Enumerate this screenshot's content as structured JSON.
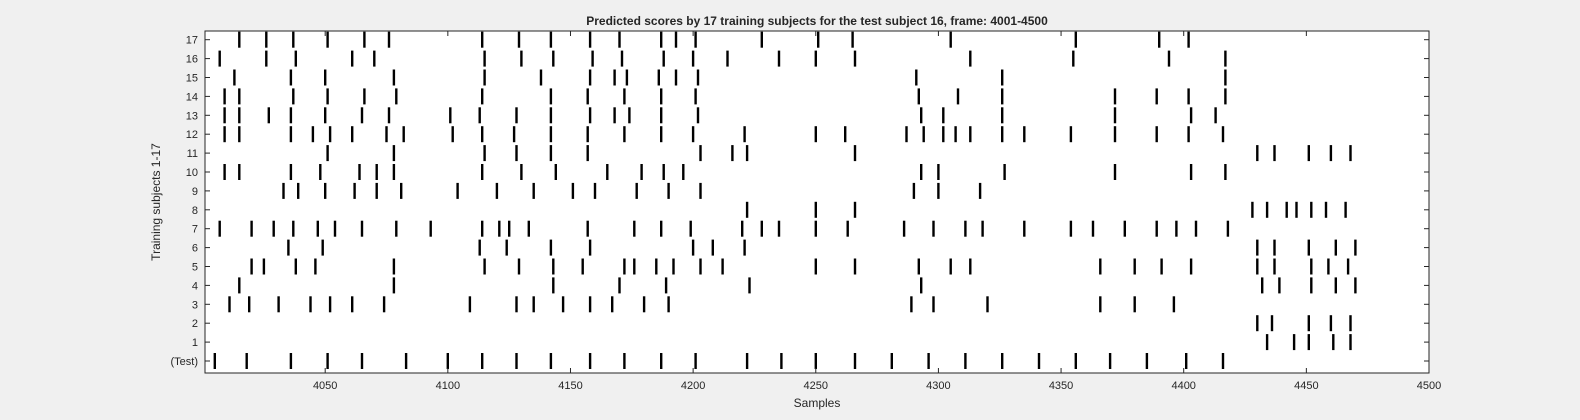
{
  "chart_data": {
    "type": "raster",
    "title": "Predicted scores by 17 training subjects for the test subject 16, frame: 4001-4500",
    "xlabel": "Samples",
    "ylabel": "Training subjects 1-17",
    "xlim": [
      4001,
      4500
    ],
    "x_ticks": [
      4050,
      4100,
      4150,
      4200,
      4250,
      4300,
      4350,
      4400,
      4450,
      4500
    ],
    "y_tick_labels": [
      "(Test)",
      "1",
      "2",
      "3",
      "4",
      "5",
      "6",
      "7",
      "8",
      "9",
      "10",
      "11",
      "12",
      "13",
      "14",
      "15",
      "16",
      "17"
    ],
    "series": [
      {
        "name": "(Test)",
        "x": [
          4005,
          4018,
          4036,
          4051,
          4065,
          4083,
          4100,
          4114,
          4128,
          4142,
          4158,
          4172,
          4187,
          4201,
          4222,
          4236,
          4250,
          4266,
          4281,
          4296,
          4311,
          4326,
          4341,
          4356,
          4370,
          4385,
          4401,
          4416
        ]
      },
      {
        "name": "1",
        "x": [
          4434,
          4445,
          4451,
          4461,
          4468
        ]
      },
      {
        "name": "2",
        "x": [
          4430,
          4436,
          4451,
          4460,
          4468
        ]
      },
      {
        "name": "3",
        "x": [
          4011,
          4019,
          4031,
          4044,
          4052,
          4061,
          4074,
          4109,
          4128,
          4135,
          4147,
          4158,
          4167,
          4180,
          4190,
          4289,
          4298,
          4320,
          4366,
          4380,
          4396
        ]
      },
      {
        "name": "4",
        "x": [
          4015,
          4078,
          4143,
          4170,
          4189,
          4223,
          4293,
          4432,
          4439,
          4452,
          4462,
          4470
        ]
      },
      {
        "name": "5",
        "x": [
          4020,
          4025,
          4038,
          4046,
          4078,
          4115,
          4129,
          4143,
          4155,
          4172,
          4176,
          4185,
          4192,
          4203,
          4212,
          4250,
          4266,
          4292,
          4305,
          4313,
          4366,
          4380,
          4391,
          4403,
          4430,
          4437,
          4452,
          4459,
          4467
        ]
      },
      {
        "name": "6",
        "x": [
          4035,
          4049,
          4113,
          4124,
          4142,
          4158,
          4200,
          4208,
          4221,
          4430,
          4437,
          4451,
          4462,
          4470
        ]
      },
      {
        "name": "7",
        "x": [
          4007,
          4020,
          4029,
          4037,
          4047,
          4054,
          4065,
          4079,
          4093,
          4114,
          4121,
          4125,
          4133,
          4157,
          4176,
          4187,
          4199,
          4220,
          4228,
          4235,
          4250,
          4263,
          4286,
          4298,
          4311,
          4318,
          4335,
          4354,
          4363,
          4376,
          4389,
          4397,
          4405,
          4418
        ]
      },
      {
        "name": "8",
        "x": [
          4222,
          4250,
          4266,
          4428,
          4434,
          4442,
          4446,
          4452,
          4458,
          4466
        ]
      },
      {
        "name": "9",
        "x": [
          4033,
          4039,
          4050,
          4062,
          4071,
          4081,
          4104,
          4120,
          4135,
          4151,
          4160,
          4177,
          4190,
          4203,
          4290,
          4300,
          4317
        ]
      },
      {
        "name": "10",
        "x": [
          4009,
          4015,
          4036,
          4048,
          4064,
          4071,
          4078,
          4114,
          4130,
          4144,
          4165,
          4179,
          4188,
          4196,
          4293,
          4300,
          4327,
          4372,
          4403,
          4417
        ]
      },
      {
        "name": "11",
        "x": [
          4051,
          4078,
          4115,
          4128,
          4142,
          4157,
          4203,
          4216,
          4222,
          4266,
          4430,
          4437,
          4451,
          4460,
          4468
        ]
      },
      {
        "name": "12",
        "x": [
          4009,
          4015,
          4036,
          4045,
          4052,
          4061,
          4075,
          4082,
          4102,
          4114,
          4127,
          4142,
          4157,
          4172,
          4187,
          4200,
          4221,
          4250,
          4262,
          4287,
          4294,
          4302,
          4307,
          4313,
          4326,
          4335,
          4354,
          4372,
          4389,
          4402,
          4416
        ]
      },
      {
        "name": "13",
        "x": [
          4009,
          4015,
          4027,
          4036,
          4050,
          4065,
          4076,
          4101,
          4113,
          4128,
          4142,
          4158,
          4168,
          4174,
          4187,
          4202,
          4293,
          4302,
          4326,
          4372,
          4403,
          4413
        ]
      },
      {
        "name": "14",
        "x": [
          4009,
          4015,
          4037,
          4051,
          4066,
          4079,
          4114,
          4142,
          4157,
          4172,
          4187,
          4201,
          4292,
          4308,
          4326,
          4372,
          4389,
          4402,
          4417
        ]
      },
      {
        "name": "15",
        "x": [
          4013,
          4036,
          4050,
          4078,
          4115,
          4138,
          4158,
          4168,
          4173,
          4186,
          4193,
          4202,
          4291,
          4326,
          4417
        ]
      },
      {
        "name": "16",
        "x": [
          4007,
          4026,
          4038,
          4061,
          4070,
          4115,
          4130,
          4143,
          4159,
          4171,
          4188,
          4200,
          4214,
          4235,
          4250,
          4266,
          4313,
          4355,
          4394,
          4417
        ]
      },
      {
        "name": "17",
        "x": [
          4015,
          4026,
          4037,
          4051,
          4066,
          4076,
          4114,
          4129,
          4142,
          4158,
          4170,
          4187,
          4193,
          4201,
          4228,
          4251,
          4265,
          4305,
          4356,
          4390,
          4402
        ]
      }
    ]
  }
}
